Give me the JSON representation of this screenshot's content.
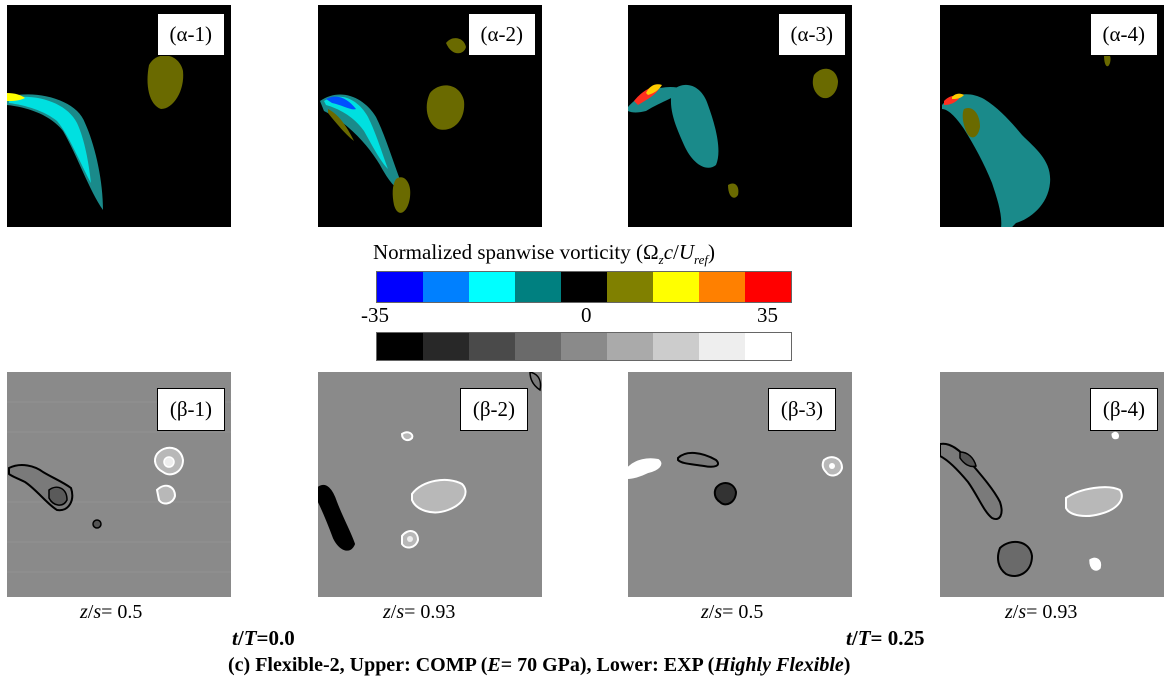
{
  "top_panels": [
    {
      "label": "(α-1)"
    },
    {
      "label": "(α-2)"
    },
    {
      "label": "(α-3)"
    },
    {
      "label": "(α-4)"
    }
  ],
  "bottom_panels": [
    {
      "label": "(β-1)"
    },
    {
      "label": "(β-2)"
    },
    {
      "label": "(β-3)"
    },
    {
      "label": "(β-4)"
    }
  ],
  "z_captions": [
    {
      "var": "z",
      "mid": "/",
      "var2": "s",
      "value": "= 0.5"
    },
    {
      "var": "z",
      "mid": "/",
      "var2": "s",
      "value": "= 0.93"
    },
    {
      "var": "z",
      "mid": "/",
      "var2": "s",
      "value": "= 0.5"
    },
    {
      "var": "z",
      "mid": "/",
      "var2": "s",
      "value": "= 0.93"
    }
  ],
  "time_labels": [
    {
      "var": "t",
      "slash": "/",
      "var2": "T",
      "value": "=0.0"
    },
    {
      "var": "t",
      "slash": "/",
      "var2": "T",
      "value": "= 0.25"
    }
  ],
  "colorbar": {
    "title_pre": "Normalized spanwise vorticity (Ω",
    "title_sub_z": "z",
    "title_c": "c",
    "title_slash": "/",
    "title_U": "U",
    "title_sub_ref": "ref",
    "title_end": ")",
    "min": "-35",
    "mid": "0",
    "max": "35",
    "colors": [
      "#0000ff",
      "#0080ff",
      "#00ffff",
      "#008080",
      "#000000",
      "#808000",
      "#ffff00",
      "#ff8000",
      "#ff0000"
    ],
    "grays": [
      "#000000",
      "#282828",
      "#4a4a4a",
      "#6a6a6a",
      "#8a8a8a",
      "#aaaaaa",
      "#cccccc",
      "#eeeeee",
      "#ffffff"
    ]
  },
  "caption": {
    "pre": "(c) Flexible-2, Upper: COMP (",
    "E": "E",
    "mid": "= 70 GPa), Lower: EXP (",
    "flex": "Highly Flexible",
    "end": ")"
  }
}
